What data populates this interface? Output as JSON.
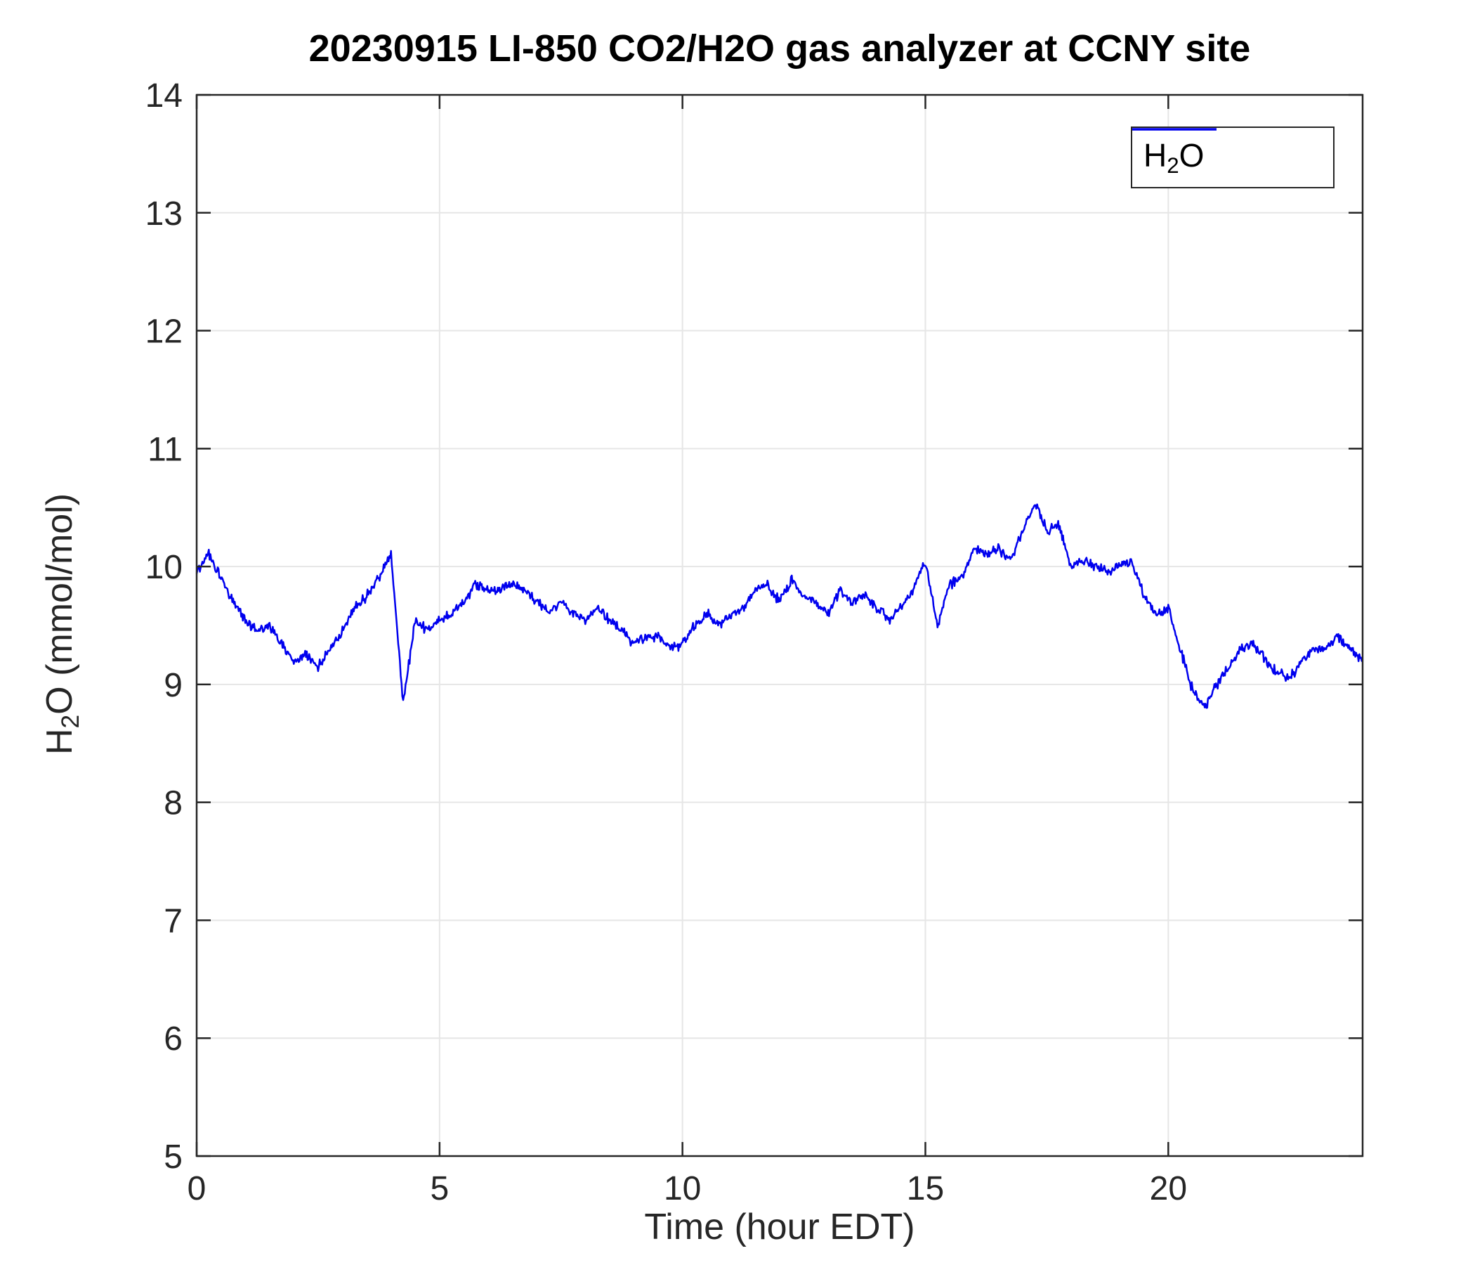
{
  "title": "20230915 LI-850 CO2/H2O gas analyzer at CCNY site",
  "chart_data": {
    "type": "line",
    "title": "20230915 LI-850 CO2/H2O gas analyzer at CCNY site",
    "xlabel": "Time (hour EDT)",
    "ylabel": "H2O (mmol/mol)",
    "ylabel_parts": {
      "pre": "H",
      "sub": "2",
      "post": "O (mmol/mol)"
    },
    "legend_parts": {
      "pre": "H",
      "sub": "2",
      "post": "O"
    },
    "legend": [
      "H2O"
    ],
    "legend_position": "northeast",
    "grid": true,
    "xlim": [
      0,
      24
    ],
    "ylim": [
      5,
      14
    ],
    "xticks": [
      0,
      5,
      10,
      15,
      20
    ],
    "yticks": [
      5,
      6,
      7,
      8,
      9,
      10,
      11,
      12,
      13,
      14
    ],
    "colors": {
      "line": "#0000EE",
      "grid": "#E6E6E6",
      "axis": "#262626",
      "tick_text": "#262626"
    },
    "series": [
      {
        "name": "H2O",
        "color": "#0000EE",
        "x": [
          0,
          0.25,
          0.5,
          0.75,
          1,
          1.25,
          1.5,
          1.75,
          2,
          2.25,
          2.5,
          2.75,
          3,
          3.25,
          3.5,
          3.75,
          4,
          4.25,
          4.5,
          4.75,
          5,
          5.25,
          5.5,
          5.75,
          6,
          6.25,
          6.5,
          6.75,
          7,
          7.25,
          7.5,
          7.75,
          8,
          8.25,
          8.5,
          8.75,
          9,
          9.25,
          9.5,
          9.75,
          10,
          10.25,
          10.5,
          10.75,
          11,
          11.25,
          11.5,
          11.75,
          12,
          12.25,
          12.5,
          12.75,
          13,
          13.25,
          13.5,
          13.75,
          14,
          14.25,
          14.5,
          14.75,
          15,
          15.25,
          15.5,
          15.75,
          16,
          16.25,
          16.5,
          16.75,
          17,
          17.25,
          17.5,
          17.75,
          18,
          18.25,
          18.5,
          18.75,
          19,
          19.25,
          19.5,
          19.75,
          20,
          20.25,
          20.5,
          20.75,
          21,
          21.25,
          21.5,
          21.75,
          22,
          22.25,
          22.5,
          22.75,
          23,
          23.25,
          23.5,
          23.75,
          24
        ],
        "values": [
          9.95,
          10.1,
          9.9,
          9.7,
          9.55,
          9.45,
          9.5,
          9.35,
          9.2,
          9.25,
          9.15,
          9.3,
          9.45,
          9.65,
          9.75,
          9.9,
          10.1,
          8.85,
          9.55,
          9.45,
          9.55,
          9.6,
          9.7,
          9.85,
          9.8,
          9.8,
          9.85,
          9.8,
          9.7,
          9.6,
          9.7,
          9.6,
          9.55,
          9.65,
          9.55,
          9.45,
          9.35,
          9.4,
          9.4,
          9.3,
          9.35,
          9.5,
          9.6,
          9.5,
          9.6,
          9.65,
          9.8,
          9.85,
          9.7,
          9.9,
          9.75,
          9.7,
          9.6,
          9.8,
          9.7,
          9.75,
          9.65,
          9.55,
          9.65,
          9.8,
          10.05,
          9.5,
          9.85,
          9.9,
          10.15,
          10.1,
          10.15,
          10.05,
          10.3,
          10.55,
          10.3,
          10.35,
          10.0,
          10.05,
          10.0,
          9.95,
          10.0,
          10.05,
          9.75,
          9.6,
          9.65,
          9.3,
          8.95,
          8.8,
          9.0,
          9.15,
          9.3,
          9.35,
          9.2,
          9.1,
          9.05,
          9.2,
          9.3,
          9.3,
          9.4,
          9.3,
          9.2
        ]
      }
    ],
    "render": {
      "interp_points": 1441,
      "noise_amp": 0.05,
      "noise_seed": 42
    }
  }
}
